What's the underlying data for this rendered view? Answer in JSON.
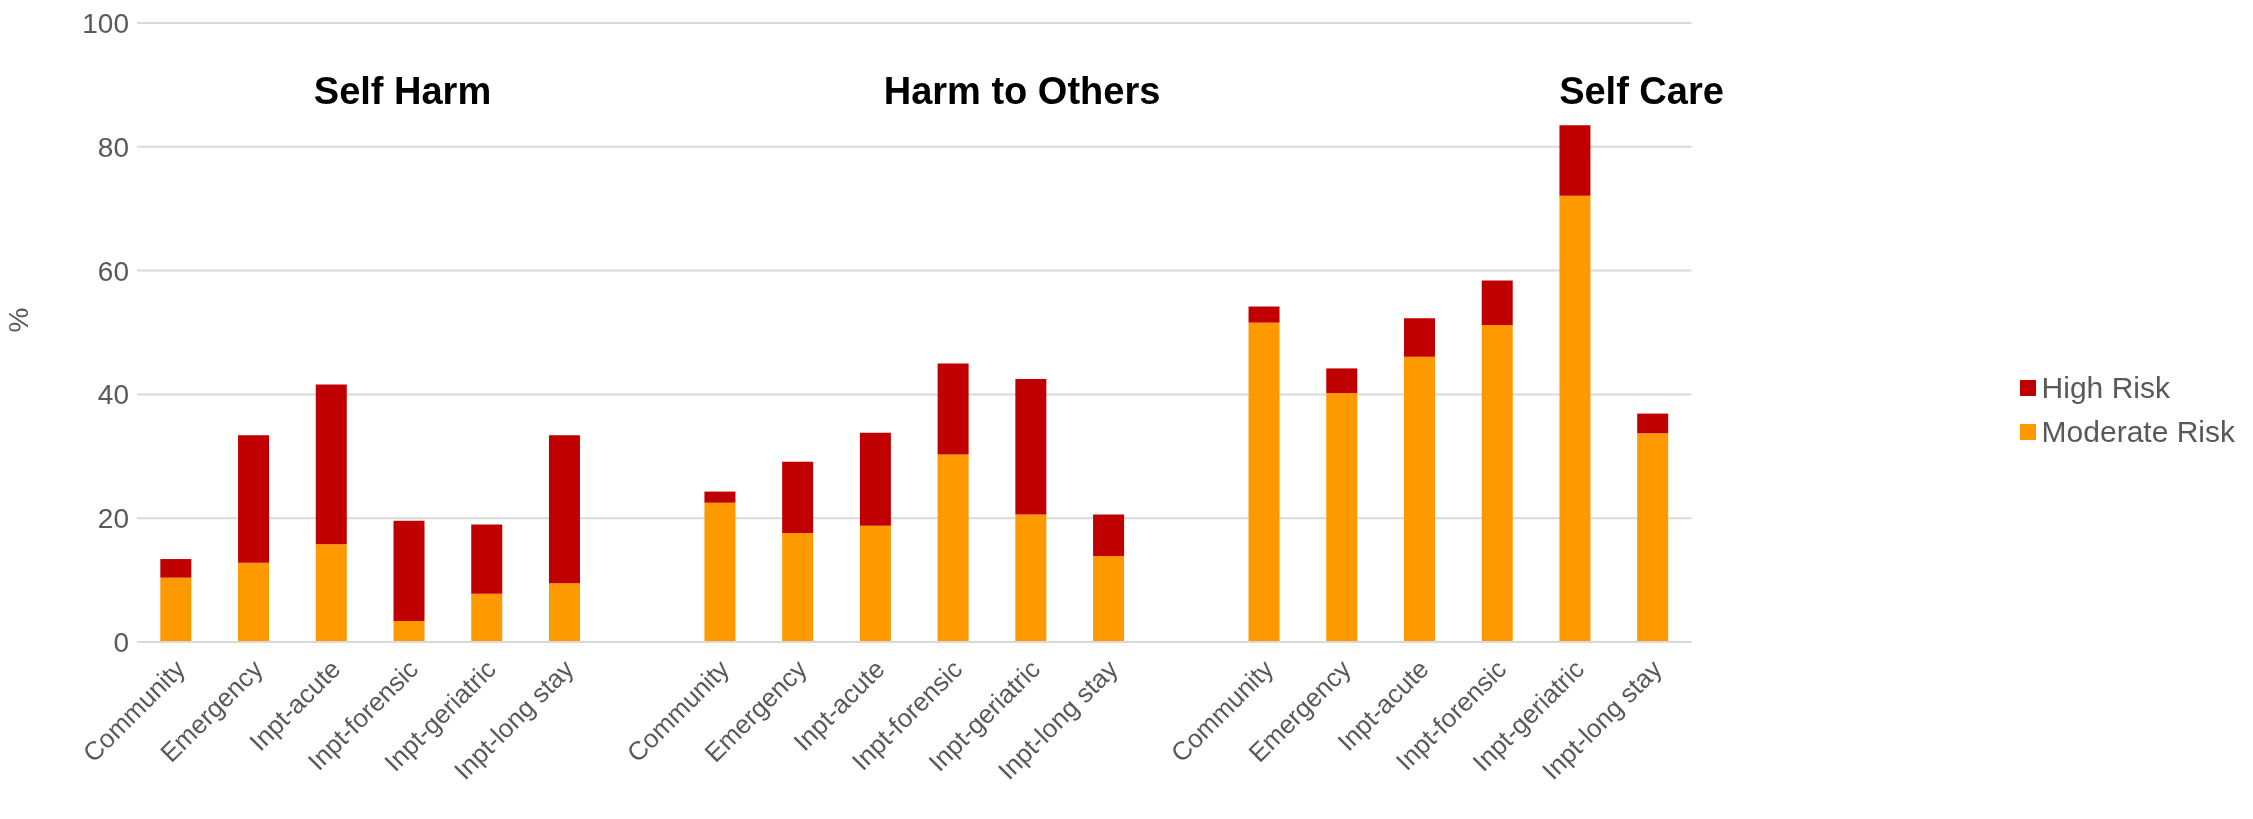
{
  "chart_data": {
    "type": "bar",
    "stacked": true,
    "ylabel": "%",
    "ylim": [
      0,
      100
    ],
    "yticks": [
      0,
      20,
      40,
      60,
      80,
      100
    ],
    "grid": "y",
    "legend": "right",
    "annotations": [
      "Self Harm",
      "Harm to Others",
      "Self Care"
    ],
    "categories": [
      "Community",
      "Emergency",
      "Inpt-acute",
      "Inpt-forensic",
      "Inpt-geriatric",
      "Inpt-long stay",
      null,
      "Community",
      "Emergency",
      "Inpt-acute",
      "Inpt-forensic",
      "Inpt-geriatric",
      "Inpt-long stay",
      null,
      "Community",
      "Emergency",
      "Inpt-acute",
      "Inpt-forensic",
      "Inpt-geriatric",
      "Inpt-long stay"
    ],
    "series": [
      {
        "name": "Moderate Risk",
        "color": "#ff9900",
        "values": [
          10.4,
          12.8,
          15.8,
          3.4,
          7.8,
          9.5,
          null,
          22.5,
          17.6,
          18.8,
          30.3,
          20.6,
          13.9,
          null,
          51.6,
          40.2,
          46.1,
          51.2,
          72.1,
          33.7
        ]
      },
      {
        "name": "High Risk",
        "color": "#c00000",
        "values": [
          3.0,
          20.6,
          25.8,
          16.2,
          11.2,
          23.9,
          null,
          1.8,
          11.5,
          15.0,
          14.7,
          21.9,
          6.7,
          null,
          2.6,
          4.0,
          6.2,
          7.2,
          11.4,
          3.2
        ]
      }
    ]
  }
}
